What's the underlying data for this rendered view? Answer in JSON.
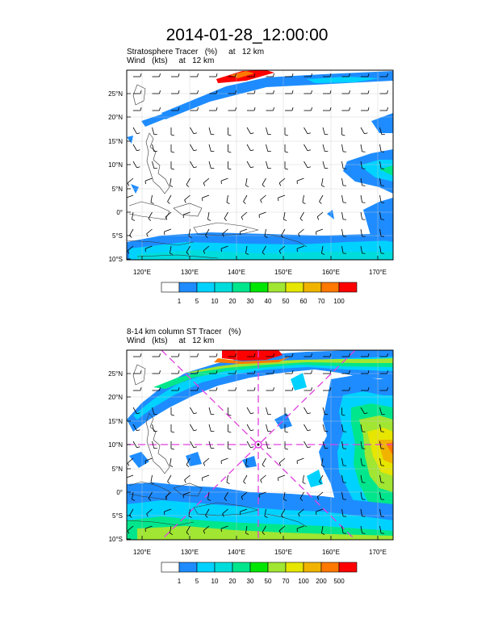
{
  "title": "2014-01-28_12:00:00",
  "panels": [
    {
      "subtitle_line1": "Stratosphere Tracer   (%)     at   12 km",
      "subtitle_line2": "Wind   (kts)     at   12 km",
      "lat_labels": [
        "25°N",
        "20°N",
        "15°N",
        "10°N",
        "5°N",
        "0°",
        "5°S",
        "10°S"
      ],
      "lon_labels": [
        "120°E",
        "130°E",
        "140°E",
        "150°E",
        "160°E",
        "170°E"
      ],
      "colorbar_labels": [
        "1",
        "5",
        "10",
        "20",
        "30",
        "40",
        "50",
        "60",
        "70",
        "100"
      ]
    },
    {
      "subtitle_line1": "8-14 km column ST Tracer   (%)",
      "subtitle_line2": "Wind   (kts)     at   12 km",
      "lat_labels": [
        "25°N",
        "20°N",
        "15°N",
        "10°N",
        "5°N",
        "0°",
        "5°S",
        "10°S"
      ],
      "lon_labels": [
        "120°E",
        "130°E",
        "140°E",
        "150°E",
        "160°E",
        "170°E"
      ],
      "colorbar_labels": [
        "1",
        "5",
        "10",
        "20",
        "30",
        "50",
        "70",
        "100",
        "200",
        "500"
      ]
    }
  ],
  "colors": {
    "palette": [
      "#ffffff",
      "#1e8cff",
      "#00d2ff",
      "#00dcdc",
      "#00e68c",
      "#00e600",
      "#a0e632",
      "#e6e600",
      "#f0b400",
      "#ff7800",
      "#ff0000"
    ],
    "crosshair": "#e040e0"
  }
}
